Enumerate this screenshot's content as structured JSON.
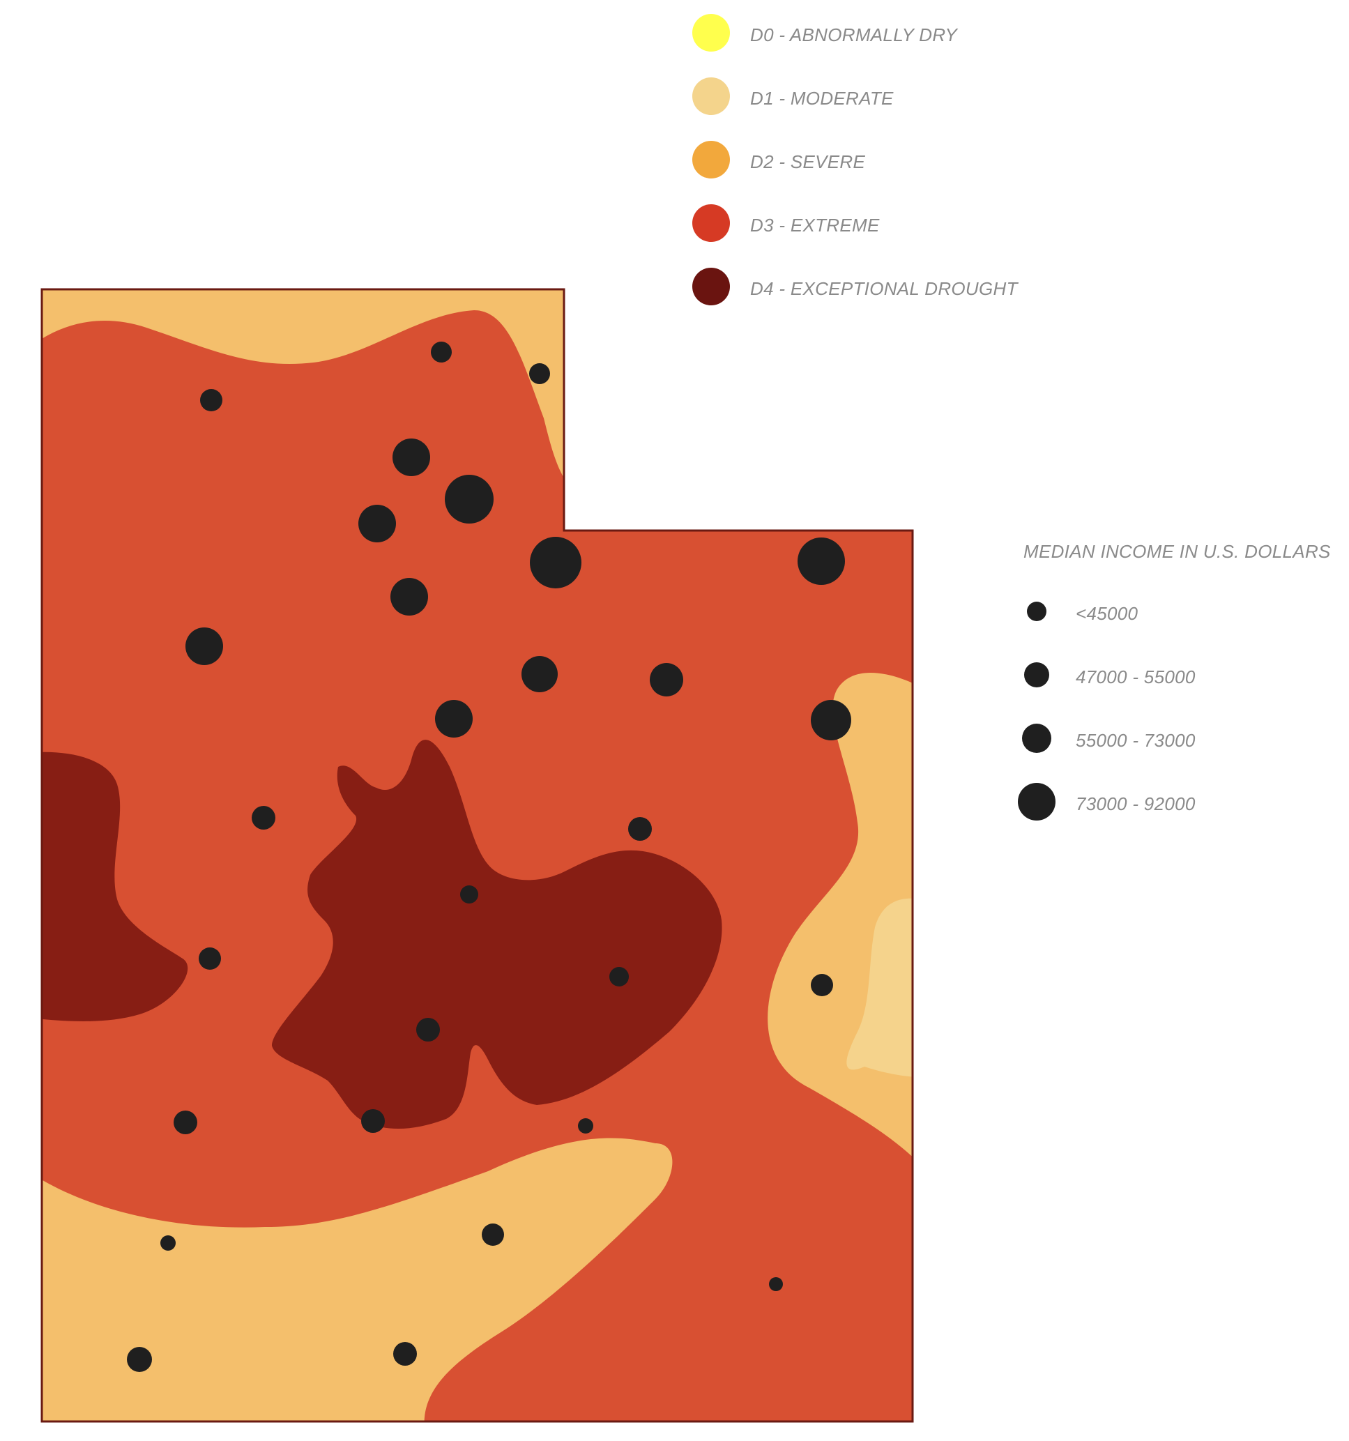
{
  "drought_legend": {
    "items": [
      {
        "label": "D0 - ABNORMALLY DRY",
        "color": "#ffff4d"
      },
      {
        "label": "D1 - MODERATE",
        "color": "#f4d48c"
      },
      {
        "label": "D2 - SEVERE",
        "color": "#f2a83c"
      },
      {
        "label": "D3 - EXTREME",
        "color": "#d63a24"
      },
      {
        "label": "D4 - EXCEPTIONAL DROUGHT",
        "color": "#6a1410"
      }
    ]
  },
  "income_legend": {
    "title": "MEDIAN INCOME IN U.S. DOLLARS",
    "dot_color": "#1f1f1f",
    "items": [
      {
        "label": "<45000"
      },
      {
        "label": "47000 - 55000"
      },
      {
        "label": "55000 - 73000"
      },
      {
        "label": "73000 - 92000"
      }
    ]
  },
  "map_colors": {
    "border": "#6a1a12",
    "d1_fill": "#f5d38c",
    "d2_fill": "#f4bf6c",
    "d3_fill": "#d85032",
    "d4_fill": "#871e14",
    "dot": "#1f1f1f"
  }
}
